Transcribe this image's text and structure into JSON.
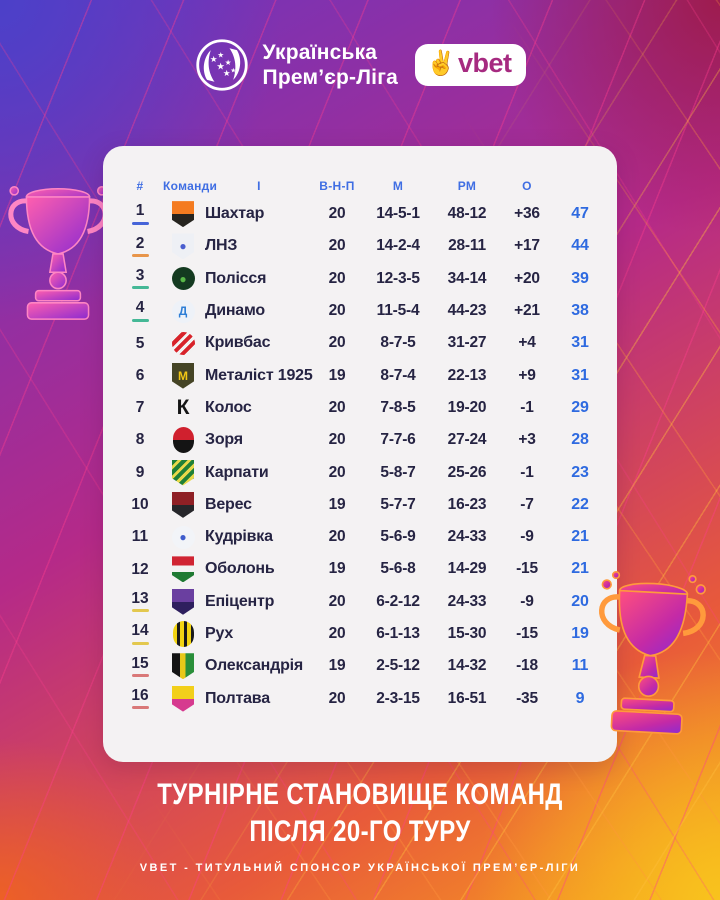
{
  "header": {
    "league_line1": "Українська",
    "league_line2": "Прем’єр-Ліга",
    "vbet_label": "vbet",
    "vbet_hand_icon": "victory-hand"
  },
  "chart_data": {
    "type": "table",
    "title": "ТУРНІРНЕ СТАНОВИЩЕ КОМАНД ПІСЛЯ 20-ГО ТУРУ",
    "columns": [
      "#",
      "Команди",
      "І",
      "В-Н-П",
      "М",
      "РМ",
      "О"
    ],
    "rows": [
      {
        "rank": "1",
        "team": "Шахтар",
        "played": "20",
        "wdl": "14-5-1",
        "goals": "48-12",
        "diff": "+36",
        "points": "47"
      },
      {
        "rank": "2",
        "team": "ЛНЗ",
        "played": "20",
        "wdl": "14-2-4",
        "goals": "28-11",
        "diff": "+17",
        "points": "44"
      },
      {
        "rank": "3",
        "team": "Полісся",
        "played": "20",
        "wdl": "12-3-5",
        "goals": "34-14",
        "diff": "+20",
        "points": "39"
      },
      {
        "rank": "4",
        "team": "Динамо",
        "played": "20",
        "wdl": "11-5-4",
        "goals": "44-23",
        "diff": "+21",
        "points": "38"
      },
      {
        "rank": "5",
        "team": "Кривбас",
        "played": "20",
        "wdl": "8-7-5",
        "goals": "31-27",
        "diff": "+4",
        "points": "31"
      },
      {
        "rank": "6",
        "team": "Металіст 1925",
        "played": "19",
        "wdl": "8-7-4",
        "goals": "22-13",
        "diff": "+9",
        "points": "31"
      },
      {
        "rank": "7",
        "team": "Колос",
        "played": "20",
        "wdl": "7-8-5",
        "goals": "19-20",
        "diff": "-1",
        "points": "29"
      },
      {
        "rank": "8",
        "team": "Зоря",
        "played": "20",
        "wdl": "7-7-6",
        "goals": "27-24",
        "diff": "+3",
        "points": "28"
      },
      {
        "rank": "9",
        "team": "Карпати",
        "played": "20",
        "wdl": "5-8-7",
        "goals": "25-26",
        "diff": "-1",
        "points": "23"
      },
      {
        "rank": "10",
        "team": "Верес",
        "played": "19",
        "wdl": "5-7-7",
        "goals": "16-23",
        "diff": "-7",
        "points": "22"
      },
      {
        "rank": "11",
        "team": "Кудрівка",
        "played": "20",
        "wdl": "5-6-9",
        "goals": "24-33",
        "diff": "-9",
        "points": "21"
      },
      {
        "rank": "12",
        "team": "Оболонь",
        "played": "19",
        "wdl": "5-6-8",
        "goals": "14-29",
        "diff": "-15",
        "points": "21"
      },
      {
        "rank": "13",
        "team": "Епіцентр",
        "played": "20",
        "wdl": "6-2-12",
        "goals": "24-33",
        "diff": "-9",
        "points": "20"
      },
      {
        "rank": "14",
        "team": "Рух",
        "played": "20",
        "wdl": "6-1-13",
        "goals": "15-30",
        "diff": "-15",
        "points": "19"
      },
      {
        "rank": "15",
        "team": "Олександрія",
        "played": "19",
        "wdl": "2-5-12",
        "goals": "14-32",
        "diff": "-18",
        "points": "11"
      },
      {
        "rank": "16",
        "team": "Полтава",
        "played": "20",
        "wdl": "2-3-15",
        "goals": "16-51",
        "diff": "-35",
        "points": "9"
      }
    ]
  },
  "rank_markers": {
    "1": "#4664d8",
    "2": "#e8954a",
    "3": "#45b896",
    "4": "#45b896",
    "13": "#e3c84e",
    "14": "#e3c84e",
    "15": "#d97878",
    "16": "#d97878"
  },
  "team_logos": [
    {
      "shape": "shield",
      "colors": [
        "#f47b20",
        "#26241f"
      ]
    },
    {
      "shape": "shield",
      "colors": [
        "#eef0f5"
      ],
      "text": "●",
      "textColor": "#4a5ecf"
    },
    {
      "shape": "circle",
      "colors": [
        "#143a20"
      ],
      "text": "●",
      "textColor": "#58b847"
    },
    {
      "shape": "circle",
      "colors": [
        "#eef2f8"
      ],
      "text": "Д",
      "textColor": "#2f7fd6"
    },
    {
      "shape": "circle",
      "colors": [
        "#d8232a",
        "#f2f2f2"
      ],
      "pattern": "stripes",
      "dir": "135deg"
    },
    {
      "shape": "shield",
      "colors": [
        "#454425"
      ],
      "text": "М",
      "textColor": "#f2c714"
    },
    {
      "shape": "letter",
      "colors": [
        "transparent"
      ],
      "text": "К",
      "textColor": "#151515"
    },
    {
      "shape": "oval",
      "colors": [
        "#d0202e",
        "#141414"
      ]
    },
    {
      "shape": "shield",
      "colors": [
        "#1f8038",
        "#e8d84a"
      ],
      "pattern": "stripes",
      "dir": "135deg"
    },
    {
      "shape": "shield",
      "colors": [
        "#8f2025",
        "#26262a"
      ]
    },
    {
      "shape": "circle",
      "colors": [
        "#f2f4f8"
      ],
      "text": "●",
      "textColor": "#3f5ccc"
    },
    {
      "shape": "shield",
      "colors": [
        "#d02432",
        "#f2f2f2",
        "#1f7a33"
      ]
    },
    {
      "shape": "shield",
      "colors": [
        "#6a3fa0",
        "#2e1f5e"
      ]
    },
    {
      "shape": "oval",
      "colors": [
        "#f2d412",
        "#1a1a1a"
      ],
      "pattern": "stripes",
      "dir": "90deg"
    },
    {
      "shape": "shield",
      "colors": [
        "#141414",
        "#e8c818",
        "#2a8f3a"
      ],
      "dir": "90deg"
    },
    {
      "shape": "shield",
      "colors": [
        "#f2cf1a",
        "#d63a8f"
      ]
    }
  ],
  "footer": {
    "title_line1": "ТУРНІРНЕ СТАНОВИЩЕ КОМАНД",
    "title_line2": "ПІСЛЯ 20-ГО ТУРУ",
    "sponsor_line": "VBET - ТИТУЛЬНИЙ СПОНСОР УКРАЇНСЬКОЇ ПРЕМ’ЄР-ЛІГИ"
  },
  "colors": {
    "header_text_blue": "#3f6ee3",
    "body_navy": "#262443",
    "points_blue": "#2e6ae0",
    "card_bg": "#f4f2f3",
    "trophy_pink": "#ff4f9e",
    "trophy_purple": "#8d2bd0",
    "trophy_orange": "#ff9a3c"
  }
}
